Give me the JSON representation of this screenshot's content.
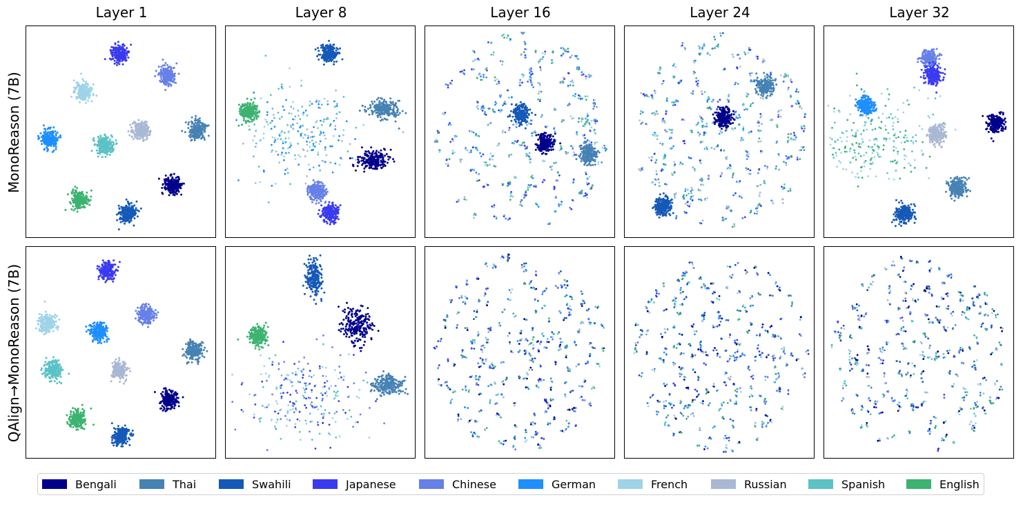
{
  "figure": {
    "column_titles": [
      "Layer 1",
      "Layer 8",
      "Layer 16",
      "Layer 24",
      "Layer 32"
    ],
    "row_labels": [
      "MonoReason (7B)",
      "QAlign→MonoReason (7B)"
    ]
  },
  "legend": {
    "items": [
      {
        "label": "Bengali",
        "color": "#00008b"
      },
      {
        "label": "Thai",
        "color": "#4682b4"
      },
      {
        "label": "Swahili",
        "color": "#1559b8"
      },
      {
        "label": "Japanese",
        "color": "#3a3af0"
      },
      {
        "label": "Chinese",
        "color": "#6680e8"
      },
      {
        "label": "German",
        "color": "#1e8fff"
      },
      {
        "label": "French",
        "color": "#9fd3e8"
      },
      {
        "label": "Russian",
        "color": "#a9b8d3"
      },
      {
        "label": "Spanish",
        "color": "#5bc2c6"
      },
      {
        "label": "English",
        "color": "#3cb371"
      }
    ]
  },
  "chart_data": {
    "type": "scatter",
    "description_of_axes": "t-SNE projections, no ticks",
    "grid": false,
    "legend_placement": "bottom",
    "panels": [
      {
        "row": 0,
        "col": 0,
        "layer": "Layer 1",
        "model": "MonoReason (7B)",
        "clusters": [
          {
            "lang": "Japanese",
            "x": 0.49,
            "y": 0.13
          },
          {
            "lang": "Chinese",
            "x": 0.74,
            "y": 0.23
          },
          {
            "lang": "French",
            "x": 0.3,
            "y": 0.31
          },
          {
            "lang": "Russian",
            "x": 0.6,
            "y": 0.49
          },
          {
            "lang": "Thai",
            "x": 0.9,
            "y": 0.49
          },
          {
            "lang": "German",
            "x": 0.12,
            "y": 0.53
          },
          {
            "lang": "Spanish",
            "x": 0.41,
            "y": 0.56
          },
          {
            "lang": "Bengali",
            "x": 0.77,
            "y": 0.75
          },
          {
            "lang": "English",
            "x": 0.28,
            "y": 0.82
          },
          {
            "lang": "Swahili",
            "x": 0.53,
            "y": 0.88
          }
        ]
      },
      {
        "row": 0,
        "col": 1,
        "layer": "Layer 8",
        "model": "MonoReason (7B)",
        "clusters": [
          {
            "lang": "Swahili",
            "x": 0.54,
            "y": 0.13
          },
          {
            "lang": "English",
            "x": 0.12,
            "y": 0.4
          },
          {
            "lang": "Thai",
            "x": 0.83,
            "y": 0.39
          },
          {
            "lang": "Bengali",
            "x": 0.77,
            "y": 0.63
          },
          {
            "lang": "Chinese",
            "x": 0.48,
            "y": 0.78
          },
          {
            "lang": "Japanese",
            "x": 0.55,
            "y": 0.88
          }
        ],
        "scatter_region": {
          "langs": [
            "Spanish",
            "French",
            "German",
            "Russian"
          ],
          "x": 0.38,
          "y": 0.5
        }
      },
      {
        "row": 0,
        "col": 2,
        "layer": "Layer 16",
        "model": "MonoReason (7B)",
        "clusters": [
          {
            "lang": "Swahili",
            "x": 0.5,
            "y": 0.41
          },
          {
            "lang": "Bengali",
            "x": 0.63,
            "y": 0.55
          },
          {
            "lang": "Thai",
            "x": 0.86,
            "y": 0.6
          }
        ],
        "scatter_region": {
          "langs": [
            "Spanish",
            "Japanese",
            "English",
            "French",
            "German",
            "Russian",
            "Chinese"
          ],
          "x": 0.5,
          "y": 0.5
        }
      },
      {
        "row": 0,
        "col": 3,
        "layer": "Layer 24",
        "model": "MonoReason (7B)",
        "clusters": [
          {
            "lang": "Thai",
            "x": 0.74,
            "y": 0.28
          },
          {
            "lang": "Bengali",
            "x": 0.52,
            "y": 0.43
          },
          {
            "lang": "Swahili",
            "x": 0.2,
            "y": 0.85
          }
        ],
        "scatter_region": {
          "langs": [
            "Spanish",
            "Japanese",
            "English",
            "French",
            "German",
            "Russian",
            "Chinese"
          ],
          "x": 0.5,
          "y": 0.5
        }
      },
      {
        "row": 0,
        "col": 4,
        "layer": "Layer 32",
        "model": "MonoReason (7B)",
        "clusters": [
          {
            "lang": "Chinese",
            "x": 0.55,
            "y": 0.15
          },
          {
            "lang": "Japanese",
            "x": 0.57,
            "y": 0.23
          },
          {
            "lang": "German",
            "x": 0.22,
            "y": 0.37
          },
          {
            "lang": "Bengali",
            "x": 0.9,
            "y": 0.46
          },
          {
            "lang": "Russian",
            "x": 0.59,
            "y": 0.51
          },
          {
            "lang": "Thai",
            "x": 0.7,
            "y": 0.76
          },
          {
            "lang": "Swahili",
            "x": 0.42,
            "y": 0.88
          }
        ],
        "scatter_region": {
          "langs": [
            "English",
            "Spanish",
            "French"
          ],
          "x": 0.25,
          "y": 0.53
        }
      },
      {
        "row": 1,
        "col": 0,
        "layer": "Layer 1",
        "model": "QAlign→MonoReason (7B)",
        "clusters": [
          {
            "lang": "Japanese",
            "x": 0.43,
            "y": 0.11
          },
          {
            "lang": "Chinese",
            "x": 0.63,
            "y": 0.32
          },
          {
            "lang": "French",
            "x": 0.11,
            "y": 0.36
          },
          {
            "lang": "German",
            "x": 0.38,
            "y": 0.4
          },
          {
            "lang": "Thai",
            "x": 0.88,
            "y": 0.49
          },
          {
            "lang": "Russian",
            "x": 0.49,
            "y": 0.58
          },
          {
            "lang": "Spanish",
            "x": 0.14,
            "y": 0.58
          },
          {
            "lang": "Bengali",
            "x": 0.75,
            "y": 0.72
          },
          {
            "lang": "English",
            "x": 0.27,
            "y": 0.81
          },
          {
            "lang": "Swahili",
            "x": 0.5,
            "y": 0.89
          }
        ]
      },
      {
        "row": 1,
        "col": 1,
        "layer": "Layer 8",
        "model": "QAlign→MonoReason (7B)",
        "clusters": [
          {
            "lang": "Swahili",
            "x": 0.46,
            "y": 0.15
          },
          {
            "lang": "Bengali",
            "x": 0.69,
            "y": 0.37
          },
          {
            "lang": "English",
            "x": 0.17,
            "y": 0.42
          },
          {
            "lang": "Thai",
            "x": 0.85,
            "y": 0.65
          }
        ],
        "scatter_region": {
          "langs": [
            "Spanish",
            "French",
            "Chinese",
            "Japanese"
          ],
          "x": 0.4,
          "y": 0.7
        }
      },
      {
        "row": 1,
        "col": 2,
        "layer": "Layer 16",
        "model": "QAlign→MonoReason (7B)",
        "clusters": [],
        "scatter_region": {
          "langs": [
            "all"
          ],
          "x": 0.5,
          "y": 0.5
        }
      },
      {
        "row": 1,
        "col": 3,
        "layer": "Layer 24",
        "model": "QAlign→MonoReason (7B)",
        "clusters": [],
        "scatter_region": {
          "langs": [
            "all"
          ],
          "x": 0.5,
          "y": 0.5
        }
      },
      {
        "row": 1,
        "col": 4,
        "layer": "Layer 32",
        "model": "QAlign→MonoReason (7B)",
        "clusters": [],
        "scatter_region": {
          "langs": [
            "all"
          ],
          "x": 0.5,
          "y": 0.5
        }
      }
    ]
  }
}
